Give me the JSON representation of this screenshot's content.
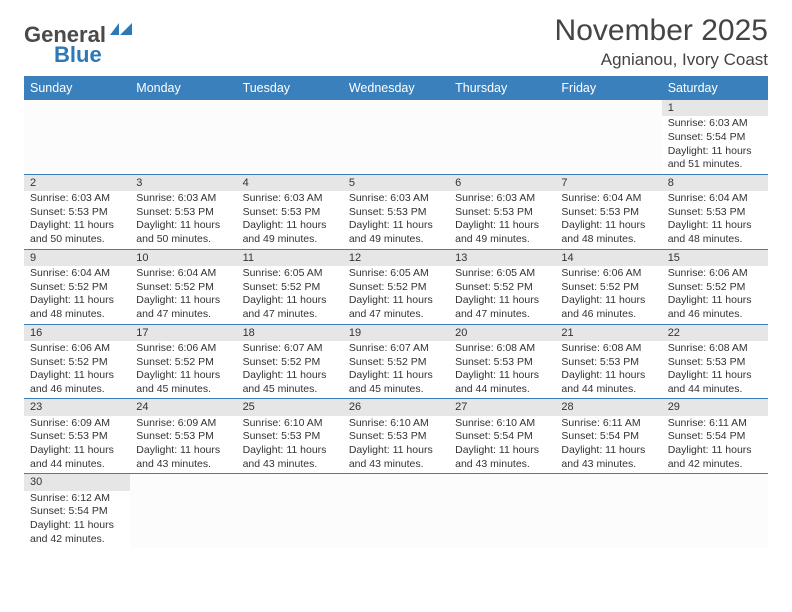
{
  "logo": {
    "text_general": "General",
    "text_blue": "Blue"
  },
  "title": "November 2025",
  "location": "Agnianou, Ivory Coast",
  "colors": {
    "header_bg": "#3a80bd",
    "header_text": "#ffffff",
    "daynum_bg": "#e6e6e6",
    "row_border": "#3a80bd",
    "body_text": "#333333",
    "title_text": "#444444",
    "logo_gray": "#4a4a4a",
    "logo_blue": "#2d78b8"
  },
  "day_headers": [
    "Sunday",
    "Monday",
    "Tuesday",
    "Wednesday",
    "Thursday",
    "Friday",
    "Saturday"
  ],
  "weeks": [
    [
      null,
      null,
      null,
      null,
      null,
      null,
      {
        "n": "1",
        "sunrise": "6:03 AM",
        "sunset": "5:54 PM",
        "day_h": "11",
        "day_m": "51"
      }
    ],
    [
      {
        "n": "2",
        "sunrise": "6:03 AM",
        "sunset": "5:53 PM",
        "day_h": "11",
        "day_m": "50"
      },
      {
        "n": "3",
        "sunrise": "6:03 AM",
        "sunset": "5:53 PM",
        "day_h": "11",
        "day_m": "50"
      },
      {
        "n": "4",
        "sunrise": "6:03 AM",
        "sunset": "5:53 PM",
        "day_h": "11",
        "day_m": "49"
      },
      {
        "n": "5",
        "sunrise": "6:03 AM",
        "sunset": "5:53 PM",
        "day_h": "11",
        "day_m": "49"
      },
      {
        "n": "6",
        "sunrise": "6:03 AM",
        "sunset": "5:53 PM",
        "day_h": "11",
        "day_m": "49"
      },
      {
        "n": "7",
        "sunrise": "6:04 AM",
        "sunset": "5:53 PM",
        "day_h": "11",
        "day_m": "48"
      },
      {
        "n": "8",
        "sunrise": "6:04 AM",
        "sunset": "5:53 PM",
        "day_h": "11",
        "day_m": "48"
      }
    ],
    [
      {
        "n": "9",
        "sunrise": "6:04 AM",
        "sunset": "5:52 PM",
        "day_h": "11",
        "day_m": "48"
      },
      {
        "n": "10",
        "sunrise": "6:04 AM",
        "sunset": "5:52 PM",
        "day_h": "11",
        "day_m": "47"
      },
      {
        "n": "11",
        "sunrise": "6:05 AM",
        "sunset": "5:52 PM",
        "day_h": "11",
        "day_m": "47"
      },
      {
        "n": "12",
        "sunrise": "6:05 AM",
        "sunset": "5:52 PM",
        "day_h": "11",
        "day_m": "47"
      },
      {
        "n": "13",
        "sunrise": "6:05 AM",
        "sunset": "5:52 PM",
        "day_h": "11",
        "day_m": "47"
      },
      {
        "n": "14",
        "sunrise": "6:06 AM",
        "sunset": "5:52 PM",
        "day_h": "11",
        "day_m": "46"
      },
      {
        "n": "15",
        "sunrise": "6:06 AM",
        "sunset": "5:52 PM",
        "day_h": "11",
        "day_m": "46"
      }
    ],
    [
      {
        "n": "16",
        "sunrise": "6:06 AM",
        "sunset": "5:52 PM",
        "day_h": "11",
        "day_m": "46"
      },
      {
        "n": "17",
        "sunrise": "6:06 AM",
        "sunset": "5:52 PM",
        "day_h": "11",
        "day_m": "45"
      },
      {
        "n": "18",
        "sunrise": "6:07 AM",
        "sunset": "5:52 PM",
        "day_h": "11",
        "day_m": "45"
      },
      {
        "n": "19",
        "sunrise": "6:07 AM",
        "sunset": "5:52 PM",
        "day_h": "11",
        "day_m": "45"
      },
      {
        "n": "20",
        "sunrise": "6:08 AM",
        "sunset": "5:53 PM",
        "day_h": "11",
        "day_m": "44"
      },
      {
        "n": "21",
        "sunrise": "6:08 AM",
        "sunset": "5:53 PM",
        "day_h": "11",
        "day_m": "44"
      },
      {
        "n": "22",
        "sunrise": "6:08 AM",
        "sunset": "5:53 PM",
        "day_h": "11",
        "day_m": "44"
      }
    ],
    [
      {
        "n": "23",
        "sunrise": "6:09 AM",
        "sunset": "5:53 PM",
        "day_h": "11",
        "day_m": "44"
      },
      {
        "n": "24",
        "sunrise": "6:09 AM",
        "sunset": "5:53 PM",
        "day_h": "11",
        "day_m": "43"
      },
      {
        "n": "25",
        "sunrise": "6:10 AM",
        "sunset": "5:53 PM",
        "day_h": "11",
        "day_m": "43"
      },
      {
        "n": "26",
        "sunrise": "6:10 AM",
        "sunset": "5:53 PM",
        "day_h": "11",
        "day_m": "43"
      },
      {
        "n": "27",
        "sunrise": "6:10 AM",
        "sunset": "5:54 PM",
        "day_h": "11",
        "day_m": "43"
      },
      {
        "n": "28",
        "sunrise": "6:11 AM",
        "sunset": "5:54 PM",
        "day_h": "11",
        "day_m": "43"
      },
      {
        "n": "29",
        "sunrise": "6:11 AM",
        "sunset": "5:54 PM",
        "day_h": "11",
        "day_m": "42"
      }
    ],
    [
      {
        "n": "30",
        "sunrise": "6:12 AM",
        "sunset": "5:54 PM",
        "day_h": "11",
        "day_m": "42"
      },
      null,
      null,
      null,
      null,
      null,
      null
    ]
  ],
  "labels": {
    "sunrise": "Sunrise:",
    "sunset": "Sunset:",
    "daylight_prefix": "Daylight:",
    "hours_word": "hours",
    "and_word": "and",
    "minutes_word": "minutes."
  }
}
